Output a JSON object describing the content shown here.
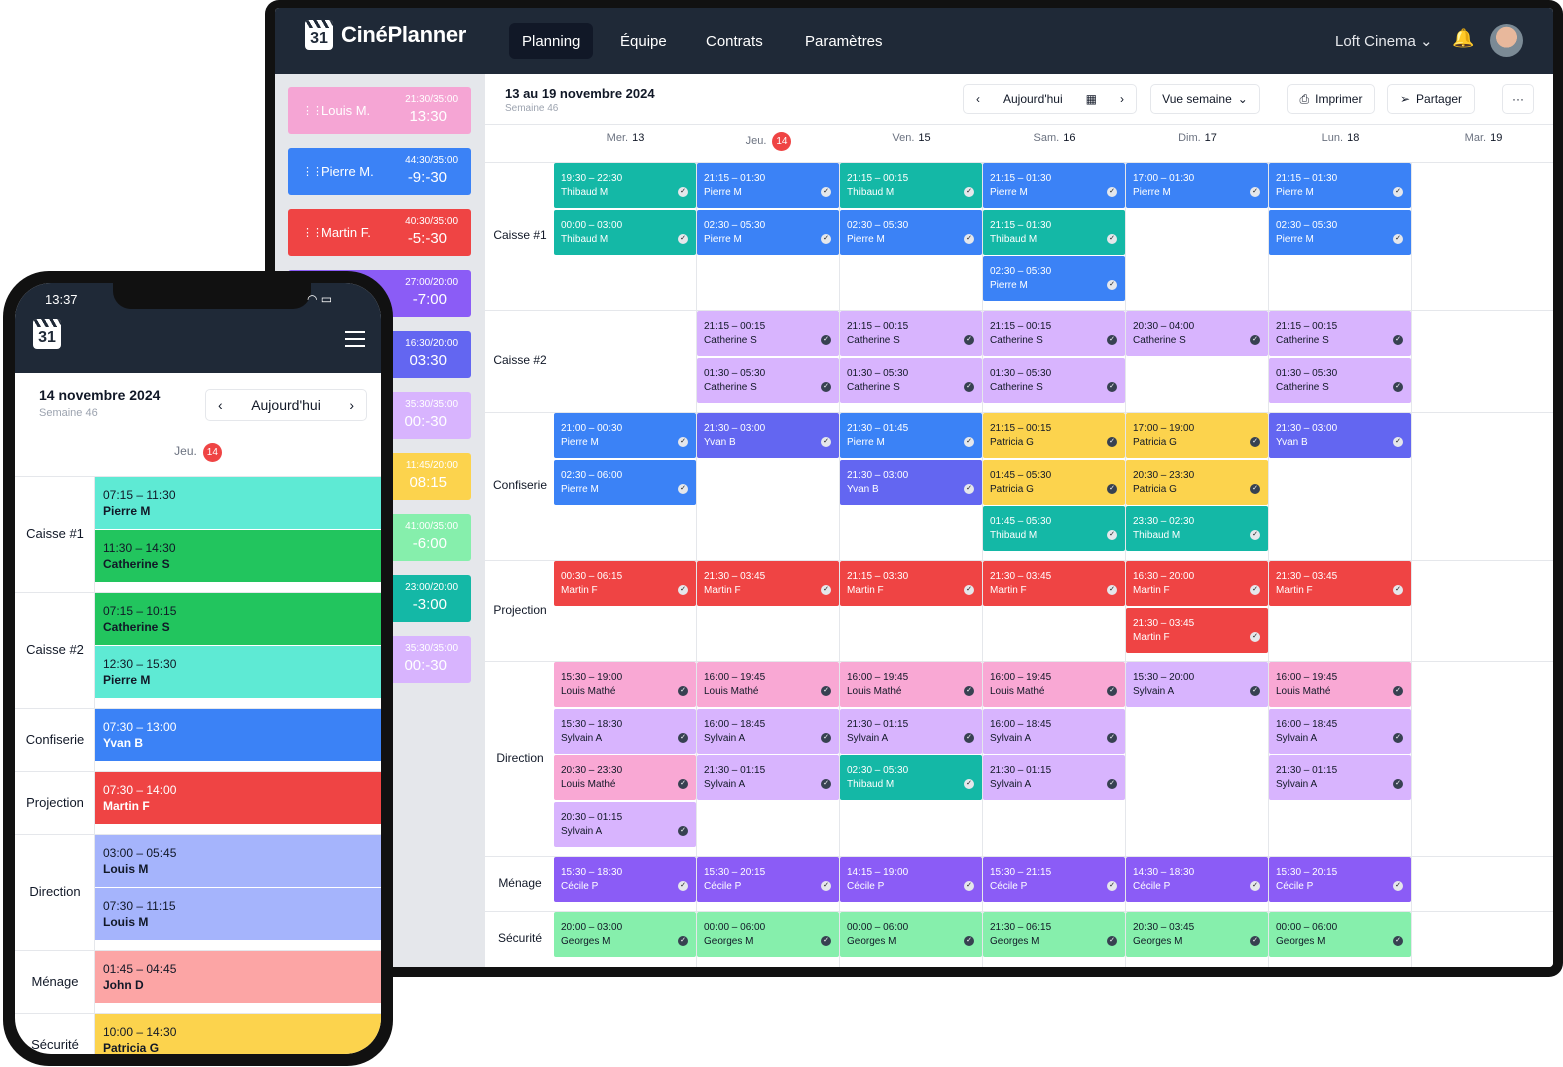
{
  "app": {
    "brand": "CinéPlanner",
    "logo_num": "31",
    "nav": [
      "Planning",
      "Équipe",
      "Contrats",
      "Paramètres"
    ],
    "venue": "Loft Cinema",
    "venue_chevron": "⌄",
    "bell_icon": "🔔"
  },
  "toolbar": {
    "title": "13 au 19 novembre 2024",
    "week": "Semaine 46",
    "prev": "‹",
    "today": "Aujourd'hui",
    "calendar_icon": "▦",
    "next": "›",
    "view": "Vue semaine",
    "view_chevron": "⌄",
    "print_icon": "⎙",
    "print": "Imprimer",
    "share_icon": "➢",
    "share": "Partager",
    "more": "···"
  },
  "employees": [
    {
      "name": "Louis M.",
      "hours": "21:30/35:00",
      "balance": "13:30",
      "color": "#f5a5d4"
    },
    {
      "name": "Pierre M.",
      "hours": "44:30/35:00",
      "balance": "-9:-30",
      "color": "#3b82f6"
    },
    {
      "name": "Martin F.",
      "hours": "40:30/35:00",
      "balance": "-5:-30",
      "color": "#ef4444"
    },
    {
      "name": "",
      "hours": "27:00/20:00",
      "balance": "-7:00",
      "color": "#8b5cf6"
    },
    {
      "name": "",
      "hours": "16:30/20:00",
      "balance": "03:30",
      "color": "#6366f1"
    },
    {
      "name": "",
      "hours": "35:30/35:00",
      "balance": "00:-30",
      "color": "#d8b4fe"
    },
    {
      "name": "",
      "hours": "11:45/20:00",
      "balance": "08:15",
      "color": "#fcd34d"
    },
    {
      "name": "",
      "hours": "41:00/35:00",
      "balance": "-6:00",
      "color": "#86efac"
    },
    {
      "name": "",
      "hours": "23:00/20:00",
      "balance": "-3:00",
      "color": "#14b8a6"
    },
    {
      "name": "",
      "hours": "35:30/35:00",
      "balance": "00:-30",
      "color": "#d8b4fe"
    }
  ],
  "days": [
    {
      "dow": "Mer.",
      "num": "13"
    },
    {
      "dow": "Jeu.",
      "num": "14",
      "today": true
    },
    {
      "dow": "Ven.",
      "num": "15"
    },
    {
      "dow": "Sam.",
      "num": "16"
    },
    {
      "dow": "Dim.",
      "num": "17"
    },
    {
      "dow": "Lun.",
      "num": "18"
    },
    {
      "dow": "Mar.",
      "num": "19"
    }
  ],
  "check_icon": "✓",
  "rows": [
    {
      "label": "Caisse #1",
      "shifts": [
        {
          "d": 0,
          "s": 0,
          "t": "19:30 – 22:30",
          "n": "Thibaud M",
          "c": "teal"
        },
        {
          "d": 0,
          "s": 1,
          "t": "00:00 – 03:00",
          "n": "Thibaud M",
          "c": "teal"
        },
        {
          "d": 1,
          "s": 0,
          "t": "21:15 – 01:30",
          "n": "Pierre M",
          "c": "blue"
        },
        {
          "d": 1,
          "s": 1,
          "t": "02:30 – 05:30",
          "n": "Pierre M",
          "c": "blue"
        },
        {
          "d": 2,
          "s": 0,
          "t": "21:15 – 00:15",
          "n": "Thibaud M",
          "c": "teal"
        },
        {
          "d": 2,
          "s": 1,
          "t": "02:30 – 05:30",
          "n": "Pierre M",
          "c": "blue"
        },
        {
          "d": 3,
          "s": 0,
          "t": "21:15 – 01:30",
          "n": "Pierre M",
          "c": "blue"
        },
        {
          "d": 3,
          "s": 1,
          "t": "21:15 – 01:30",
          "n": "Thibaud M",
          "c": "teal"
        },
        {
          "d": 3,
          "s": 2,
          "t": "02:30 – 05:30",
          "n": "Pierre M",
          "c": "blue"
        },
        {
          "d": 4,
          "s": 0,
          "t": "17:00 – 01:30",
          "n": "Pierre M",
          "c": "blue"
        },
        {
          "d": 5,
          "s": 0,
          "t": "21:15 – 01:30",
          "n": "Pierre M",
          "c": "blue"
        },
        {
          "d": 5,
          "s": 1,
          "t": "02:30 – 05:30",
          "n": "Pierre M",
          "c": "blue"
        }
      ]
    },
    {
      "label": "Caisse #2",
      "shifts": [
        {
          "d": 1,
          "s": 0,
          "t": "21:15 – 00:15",
          "n": "Catherine S",
          "c": "lav"
        },
        {
          "d": 1,
          "s": 1,
          "t": "01:30 – 05:30",
          "n": "Catherine S",
          "c": "lav"
        },
        {
          "d": 2,
          "s": 0,
          "t": "21:15 – 00:15",
          "n": "Catherine S",
          "c": "lav"
        },
        {
          "d": 2,
          "s": 1,
          "t": "01:30 – 05:30",
          "n": "Catherine S",
          "c": "lav"
        },
        {
          "d": 3,
          "s": 0,
          "t": "21:15 – 00:15",
          "n": "Catherine S",
          "c": "lav"
        },
        {
          "d": 3,
          "s": 1,
          "t": "01:30 – 05:30",
          "n": "Catherine S",
          "c": "lav"
        },
        {
          "d": 4,
          "s": 0,
          "t": "20:30 – 04:00",
          "n": "Catherine S",
          "c": "lav"
        },
        {
          "d": 5,
          "s": 0,
          "t": "21:15 – 00:15",
          "n": "Catherine S",
          "c": "lav"
        },
        {
          "d": 5,
          "s": 1,
          "t": "01:30 – 05:30",
          "n": "Catherine S",
          "c": "lav"
        }
      ]
    },
    {
      "label": "Confiserie",
      "shifts": [
        {
          "d": 0,
          "s": 0,
          "t": "21:00 – 00:30",
          "n": "Pierre M",
          "c": "blue"
        },
        {
          "d": 0,
          "s": 1,
          "t": "02:30 – 06:00",
          "n": "Pierre M",
          "c": "blue"
        },
        {
          "d": 1,
          "s": 0,
          "t": "21:30 – 03:00",
          "n": "Yvan B",
          "c": "indigo"
        },
        {
          "d": 2,
          "s": 0,
          "t": "21:30 – 01:45",
          "n": "Pierre M",
          "c": "blue"
        },
        {
          "d": 2,
          "s": 1,
          "t": "21:30 – 03:00",
          "n": "Yvan B",
          "c": "indigo"
        },
        {
          "d": 3,
          "s": 0,
          "t": "21:15 – 00:15",
          "n": "Patricia G",
          "c": "yellow"
        },
        {
          "d": 3,
          "s": 1,
          "t": "01:45 – 05:30",
          "n": "Patricia G",
          "c": "yellow"
        },
        {
          "d": 3,
          "s": 2,
          "t": "01:45 – 05:30",
          "n": "Thibaud M",
          "c": "teal"
        },
        {
          "d": 4,
          "s": 0,
          "t": "17:00 – 19:00",
          "n": "Patricia G",
          "c": "yellow"
        },
        {
          "d": 4,
          "s": 1,
          "t": "20:30 – 23:30",
          "n": "Patricia G",
          "c": "yellow"
        },
        {
          "d": 4,
          "s": 2,
          "t": "23:30 – 02:30",
          "n": "Thibaud M",
          "c": "teal"
        },
        {
          "d": 5,
          "s": 0,
          "t": "21:30 – 03:00",
          "n": "Yvan B",
          "c": "indigo"
        }
      ]
    },
    {
      "label": "Projection",
      "shifts": [
        {
          "d": 0,
          "s": 0,
          "t": "00:30 – 06:15",
          "n": "Martin F",
          "c": "red"
        },
        {
          "d": 1,
          "s": 0,
          "t": "21:30 – 03:45",
          "n": "Martin F",
          "c": "red"
        },
        {
          "d": 2,
          "s": 0,
          "t": "21:15 – 03:30",
          "n": "Martin F",
          "c": "red"
        },
        {
          "d": 3,
          "s": 0,
          "t": "21:30 – 03:45",
          "n": "Martin F",
          "c": "red"
        },
        {
          "d": 4,
          "s": 0,
          "t": "16:30 – 20:00",
          "n": "Martin F",
          "c": "red"
        },
        {
          "d": 4,
          "s": 1,
          "t": "21:30 – 03:45",
          "n": "Martin F",
          "c": "red"
        },
        {
          "d": 5,
          "s": 0,
          "t": "21:30 – 03:45",
          "n": "Martin F",
          "c": "red"
        }
      ]
    },
    {
      "label": "Direction",
      "shifts": [
        {
          "d": 0,
          "s": 0,
          "t": "15:30 – 19:00",
          "n": "Louis Mathé",
          "c": "pink"
        },
        {
          "d": 0,
          "s": 1,
          "t": "15:30 – 18:30",
          "n": "Sylvain A",
          "c": "lav"
        },
        {
          "d": 0,
          "s": 2,
          "t": "20:30 – 23:30",
          "n": "Louis Mathé",
          "c": "pink"
        },
        {
          "d": 0,
          "s": 3,
          "t": "20:30 – 01:15",
          "n": "Sylvain A",
          "c": "lav"
        },
        {
          "d": 1,
          "s": 0,
          "t": "16:00 – 19:45",
          "n": "Louis Mathé",
          "c": "pink"
        },
        {
          "d": 1,
          "s": 1,
          "t": "16:00 – 18:45",
          "n": "Sylvain A",
          "c": "lav"
        },
        {
          "d": 1,
          "s": 2,
          "t": "21:30 – 01:15",
          "n": "Sylvain A",
          "c": "lav"
        },
        {
          "d": 2,
          "s": 0,
          "t": "16:00 – 19:45",
          "n": "Louis Mathé",
          "c": "pink"
        },
        {
          "d": 2,
          "s": 1,
          "t": "21:30 – 01:15",
          "n": "Sylvain A",
          "c": "lav"
        },
        {
          "d": 2,
          "s": 2,
          "t": "02:30 – 05:30",
          "n": "Thibaud M",
          "c": "teal"
        },
        {
          "d": 3,
          "s": 0,
          "t": "16:00 – 19:45",
          "n": "Louis Mathé",
          "c": "pink"
        },
        {
          "d": 3,
          "s": 1,
          "t": "16:00 – 18:45",
          "n": "Sylvain A",
          "c": "lav"
        },
        {
          "d": 3,
          "s": 2,
          "t": "21:30 – 01:15",
          "n": "Sylvain A",
          "c": "lav"
        },
        {
          "d": 4,
          "s": 0,
          "t": "15:30 – 20:00",
          "n": "Sylvain A",
          "c": "lav"
        },
        {
          "d": 5,
          "s": 0,
          "t": "16:00 – 19:45",
          "n": "Louis Mathé",
          "c": "pink"
        },
        {
          "d": 5,
          "s": 1,
          "t": "16:00 – 18:45",
          "n": "Sylvain A",
          "c": "lav"
        },
        {
          "d": 5,
          "s": 2,
          "t": "21:30 – 01:15",
          "n": "Sylvain A",
          "c": "lav"
        }
      ]
    },
    {
      "label": "Ménage",
      "shifts": [
        {
          "d": 0,
          "s": 0,
          "t": "15:30 – 18:30",
          "n": "Cécile P",
          "c": "violet"
        },
        {
          "d": 1,
          "s": 0,
          "t": "15:30 – 20:15",
          "n": "Cécile P",
          "c": "violet"
        },
        {
          "d": 2,
          "s": 0,
          "t": "14:15 – 19:00",
          "n": "Cécile P",
          "c": "violet"
        },
        {
          "d": 3,
          "s": 0,
          "t": "15:30 – 21:15",
          "n": "Cécile P",
          "c": "violet"
        },
        {
          "d": 4,
          "s": 0,
          "t": "14:30 – 18:30",
          "n": "Cécile P",
          "c": "violet"
        },
        {
          "d": 5,
          "s": 0,
          "t": "15:30 – 20:15",
          "n": "Cécile P",
          "c": "violet"
        }
      ]
    },
    {
      "label": "Sécurité",
      "shifts": [
        {
          "d": 0,
          "s": 0,
          "t": "20:00 – 03:00",
          "n": "Georges M",
          "c": "green"
        },
        {
          "d": 1,
          "s": 0,
          "t": "00:00 – 06:00",
          "n": "Georges M",
          "c": "green"
        },
        {
          "d": 2,
          "s": 0,
          "t": "00:00 – 06:00",
          "n": "Georges M",
          "c": "green"
        },
        {
          "d": 3,
          "s": 0,
          "t": "21:30 – 06:15",
          "n": "Georges M",
          "c": "green"
        },
        {
          "d": 4,
          "s": 0,
          "t": "20:30 – 03:45",
          "n": "Georges M",
          "c": "green"
        },
        {
          "d": 5,
          "s": 0,
          "t": "00:00 – 06:00",
          "n": "Georges M",
          "c": "green"
        }
      ]
    }
  ],
  "colors": {
    "teal": "#14b8a6",
    "blue": "#3b82f6",
    "lav": "#d8b4fe",
    "indigo": "#6366f1",
    "yellow": "#fcd34d",
    "red": "#ef4444",
    "pink": "#f9a8d4",
    "violet": "#8b5cf6",
    "green": "#86efac",
    "mint": "#5eead4",
    "pgreen": "#22c55e",
    "peri": "#a5b4fc",
    "salmon": "#fca5a5"
  },
  "phone": {
    "time": "13:37",
    "status": "◠ ▭",
    "date": "14 novembre 2024",
    "week": "Semaine 46",
    "prev": "‹",
    "today": "Aujourd'hui",
    "next": "›",
    "dow": "Jeu.",
    "num": "14",
    "rows": [
      {
        "label": "Caisse #1",
        "shifts": [
          {
            "t": "07:15 – 11:30",
            "n": "Pierre M",
            "c": "mint"
          },
          {
            "t": "11:30 – 14:30",
            "n": "Catherine S",
            "c": "pgreen"
          }
        ]
      },
      {
        "label": "Caisse #2",
        "shifts": [
          {
            "t": "07:15 – 10:15",
            "n": "Catherine S",
            "c": "pgreen"
          },
          {
            "t": "12:30 – 15:30",
            "n": "Pierre M",
            "c": "mint"
          }
        ]
      },
      {
        "label": "Confiserie",
        "shifts": [
          {
            "t": "07:30 – 13:00",
            "n": "Yvan B",
            "c": "blue"
          }
        ]
      },
      {
        "label": "Projection",
        "shifts": [
          {
            "t": "07:30 – 14:00",
            "n": "Martin F",
            "c": "red"
          }
        ]
      },
      {
        "label": "Direction",
        "shifts": [
          {
            "t": "03:00 – 05:45",
            "n": "Louis M",
            "c": "peri"
          },
          {
            "t": "07:30 – 11:15",
            "n": "Louis M",
            "c": "peri"
          }
        ]
      },
      {
        "label": "Ménage",
        "shifts": [
          {
            "t": "01:45 – 04:45",
            "n": "John D",
            "c": "salmon"
          }
        ]
      },
      {
        "label": "Sécurité",
        "shifts": [
          {
            "t": "10:00 – 14:30",
            "n": "Patricia G",
            "c": "yellow"
          }
        ]
      }
    ]
  }
}
